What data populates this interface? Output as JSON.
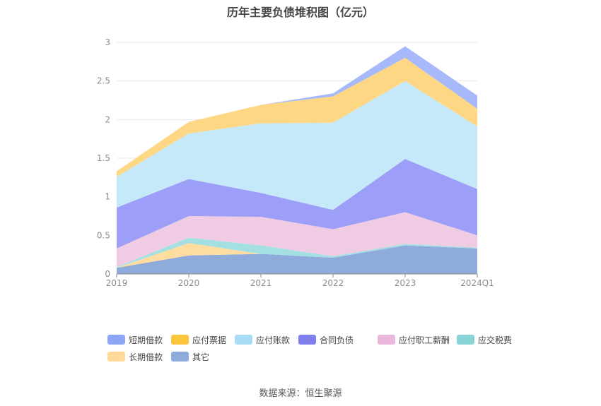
{
  "title": "历年主要负债堆积图（亿元）",
  "source": "数据来源：恒生聚源",
  "chart_data": {
    "type": "area",
    "stacked": true,
    "categories": [
      "2019",
      "2020",
      "2021",
      "2022",
      "2023",
      "2024Q1"
    ],
    "ylim": [
      0,
      3
    ],
    "yticks": [
      "0",
      "0.5",
      "1",
      "1.5",
      "2",
      "2.5",
      "3"
    ],
    "grid": true,
    "legend_position": "bottom",
    "series": [
      {
        "name": "其它",
        "color": "#8fabdb",
        "values": [
          0.08,
          0.24,
          0.26,
          0.21,
          0.37,
          0.33
        ]
      },
      {
        "name": "长期借款",
        "color": "#ffdca0",
        "values": [
          0.0,
          0.16,
          0.0,
          0.0,
          0.0,
          0.0
        ]
      },
      {
        "name": "应交税费",
        "color": "#a4dfe2",
        "values": [
          0.01,
          0.07,
          0.11,
          0.02,
          0.02,
          0.01
        ]
      },
      {
        "name": "应付职工薪酬",
        "color": "#f0cce4",
        "values": [
          0.24,
          0.28,
          0.37,
          0.35,
          0.41,
          0.16
        ]
      },
      {
        "name": "合同负债",
        "color": "#9d9ef7",
        "values": [
          0.53,
          0.48,
          0.31,
          0.25,
          0.69,
          0.6
        ]
      },
      {
        "name": "应付账款",
        "color": "#c6e9fa",
        "values": [
          0.4,
          0.59,
          0.9,
          1.13,
          1.01,
          0.81
        ]
      },
      {
        "name": "应付票据",
        "color": "#fdd784",
        "values": [
          0.07,
          0.15,
          0.24,
          0.34,
          0.3,
          0.23
        ]
      },
      {
        "name": "短期借款",
        "color": "#a7b9fa",
        "values": [
          0.0,
          0.0,
          0.0,
          0.04,
          0.15,
          0.17
        ]
      }
    ],
    "legend": [
      {
        "name": "短期借款",
        "color": "#8ca6f5"
      },
      {
        "name": "应付票据",
        "color": "#fbc53d"
      },
      {
        "name": "应付账款",
        "color": "#a8dcf5"
      },
      {
        "name": "合同负债",
        "color": "#7f80ee"
      },
      {
        "name": "应付职工薪酬",
        "color": "#e9b7d9"
      },
      {
        "name": "应交税费",
        "color": "#87d3d6"
      },
      {
        "name": "长期借款",
        "color": "#ffd89c"
      },
      {
        "name": "其它",
        "color": "#8fabdb"
      }
    ]
  }
}
